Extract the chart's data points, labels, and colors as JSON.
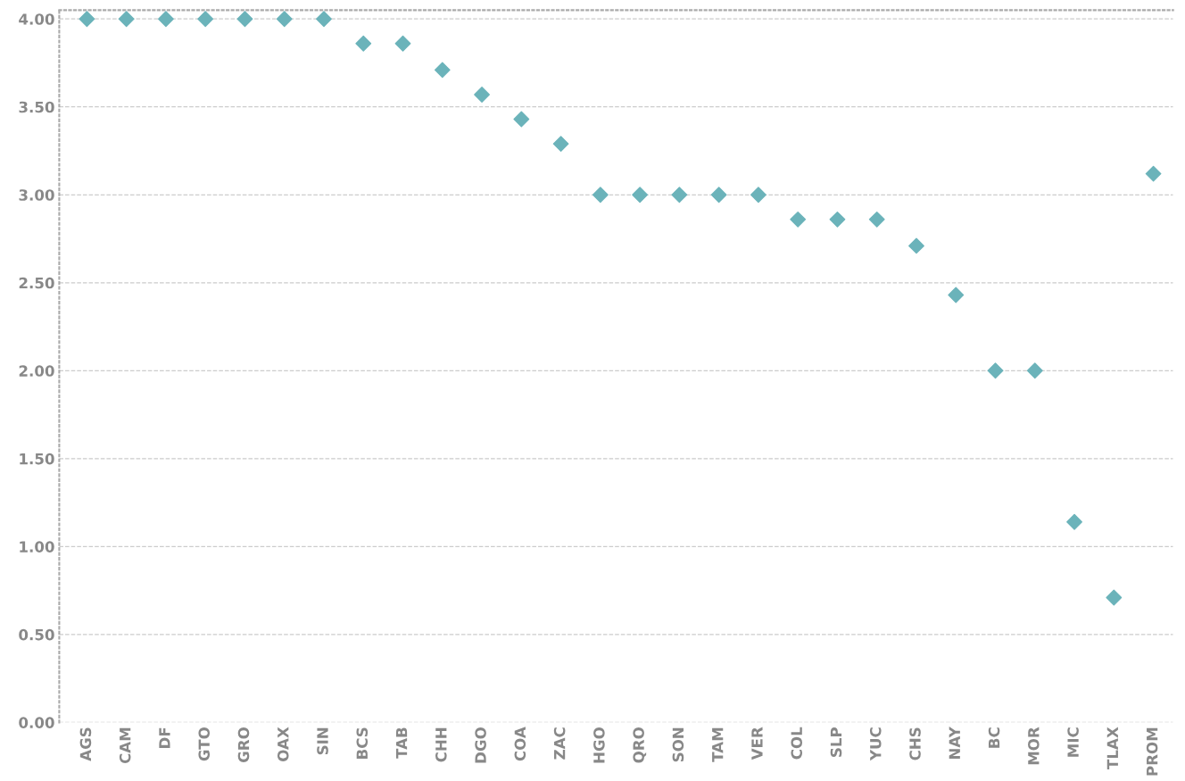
{
  "chart_data": {
    "type": "scatter",
    "marker": "diamond",
    "categories": [
      "AGS",
      "CAM",
      "DF",
      "GTO",
      "GRO",
      "OAX",
      "SIN",
      "BCS",
      "TAB",
      "CHH",
      "DGO",
      "COA",
      "ZAC",
      "HGO",
      "QRO",
      "SON",
      "TAM",
      "VER",
      "COL",
      "SLP",
      "YUC",
      "CHS",
      "NAY",
      "BC",
      "MOR",
      "MIC",
      "TLAX",
      "PROM"
    ],
    "series": [
      {
        "color": "#6bb3ba",
        "values": [
          4.0,
          4.0,
          4.0,
          4.0,
          4.0,
          4.0,
          4.0,
          3.86,
          3.86,
          3.71,
          3.57,
          3.43,
          3.29,
          3.0,
          3.0,
          3.0,
          3.0,
          3.0,
          2.86,
          2.86,
          2.86,
          2.71,
          2.43,
          2.0,
          2.0,
          1.14,
          0.71,
          3.12
        ]
      }
    ],
    "ylim": [
      0,
      4.05
    ],
    "yticks": [
      {
        "value": 0,
        "label": "0.00"
      },
      {
        "value": 0.5,
        "label": "0.50"
      },
      {
        "value": 1,
        "label": "1.00"
      },
      {
        "value": 1.5,
        "label": "1.50"
      },
      {
        "value": 2,
        "label": "2.00"
      },
      {
        "value": 2.5,
        "label": "2.50"
      },
      {
        "value": 3,
        "label": "3.00"
      },
      {
        "value": 3.5,
        "label": "3.50"
      },
      {
        "value": 4,
        "label": "4.00"
      }
    ],
    "grid": "y"
  }
}
